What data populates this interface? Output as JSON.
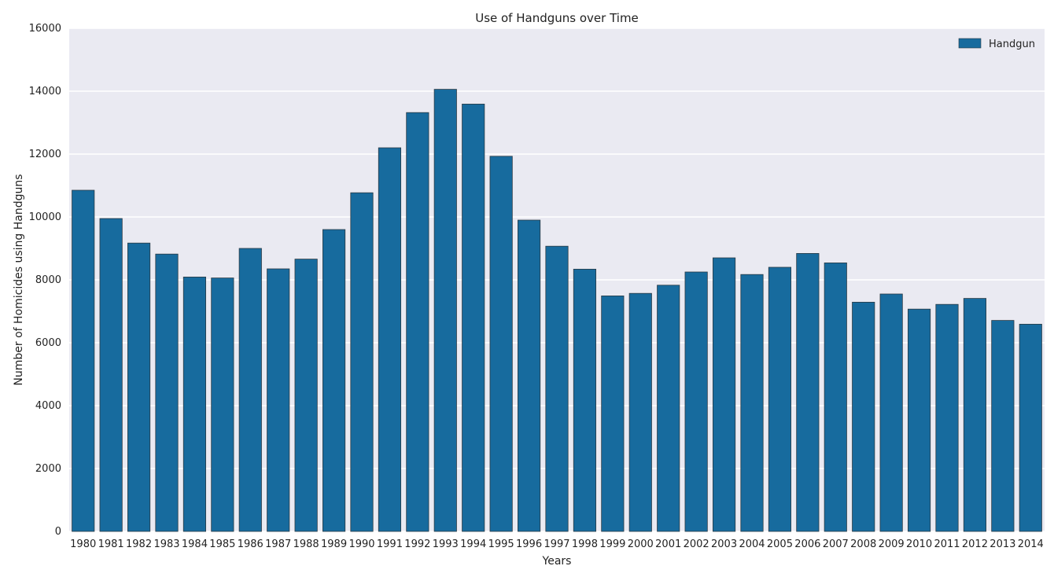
{
  "chart_data": {
    "type": "bar",
    "title": "Use of Handguns over Time",
    "xlabel": "Years",
    "ylabel": "Number of Homicides using Handguns",
    "ylim": [
      0,
      16000
    ],
    "yticks": [
      0,
      2000,
      4000,
      6000,
      8000,
      10000,
      12000,
      14000,
      16000
    ],
    "grid": true,
    "legend_position": "top-right",
    "categories": [
      "1980",
      "1981",
      "1982",
      "1983",
      "1984",
      "1985",
      "1986",
      "1987",
      "1988",
      "1989",
      "1990",
      "1991",
      "1992",
      "1993",
      "1994",
      "1995",
      "1996",
      "1997",
      "1998",
      "1999",
      "2000",
      "2001",
      "2002",
      "2003",
      "2004",
      "2005",
      "2006",
      "2007",
      "2008",
      "2009",
      "2010",
      "2011",
      "2012",
      "2013",
      "2014"
    ],
    "series": [
      {
        "name": "Handgun",
        "color": "#176b9e",
        "values": [
          10850,
          9950,
          9170,
          8820,
          8090,
          8060,
          9000,
          8350,
          8660,
          9600,
          10770,
          12200,
          13320,
          14060,
          13590,
          11930,
          9900,
          9070,
          8340,
          7490,
          7570,
          7830,
          8250,
          8700,
          8170,
          8400,
          8840,
          8540,
          7290,
          7550,
          7070,
          7220,
          7410,
          6710,
          6590
        ]
      }
    ],
    "colors": {
      "plot_background": "#eaeaf2",
      "grid": "#ffffff",
      "bar_edge": "#2b3a44"
    }
  }
}
